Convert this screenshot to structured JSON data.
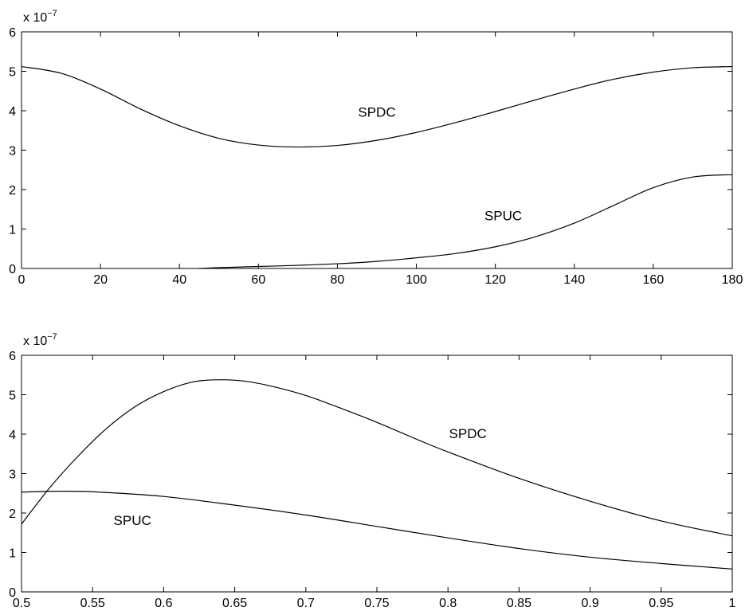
{
  "chart_data": [
    {
      "type": "line",
      "title": "",
      "xlabel": "",
      "ylabel": "",
      "xlim": [
        0,
        180
      ],
      "ylim": [
        0,
        6e-07
      ],
      "y_scale_label": {
        "prefix": "x 10",
        "exponent": "−7"
      },
      "x_ticks": [
        0,
        20,
        40,
        60,
        80,
        100,
        120,
        140,
        160,
        180
      ],
      "x_tick_labels": [
        "0",
        "20",
        "40",
        "60",
        "80",
        "100",
        "120",
        "140",
        "160",
        "180"
      ],
      "y_ticks": [
        0,
        1e-07,
        2e-07,
        3e-07,
        4e-07,
        5e-07,
        6e-07
      ],
      "y_tick_labels": [
        "0",
        "1",
        "2",
        "3",
        "4",
        "5",
        "6"
      ],
      "grid": false,
      "series": [
        {
          "name": "SPDC",
          "x": [
            0,
            10,
            20,
            30,
            40,
            50,
            60,
            70,
            80,
            90,
            100,
            110,
            120,
            130,
            140,
            150,
            160,
            170,
            180
          ],
          "y": [
            5.12e-07,
            4.95e-07,
            4.55e-07,
            4.05e-07,
            3.62e-07,
            3.3e-07,
            3.13e-07,
            3.08e-07,
            3.12e-07,
            3.25e-07,
            3.45e-07,
            3.7e-07,
            3.98e-07,
            4.27e-07,
            4.55e-07,
            4.8e-07,
            4.98e-07,
            5.09e-07,
            5.12e-07
          ]
        },
        {
          "name": "SPUC",
          "x": [
            45,
            50,
            60,
            70,
            80,
            90,
            100,
            110,
            120,
            130,
            140,
            150,
            160,
            170,
            180
          ],
          "y": [
            0,
            2e-09,
            5e-09,
            8e-09,
            1.2e-08,
            1.8e-08,
            2.7e-08,
            3.8e-08,
            5.5e-08,
            8e-08,
            1.15e-07,
            1.6e-07,
            2.05e-07,
            2.32e-07,
            2.38e-07
          ]
        }
      ],
      "annotations": [
        {
          "text": "SPDC",
          "x": 90,
          "y": 3.85e-07
        },
        {
          "text": "SPUC",
          "x": 122,
          "y": 1.22e-07
        }
      ]
    },
    {
      "type": "line",
      "title": "",
      "xlabel": "",
      "ylabel": "",
      "xlim": [
        0.5,
        1
      ],
      "ylim": [
        0,
        6e-07
      ],
      "y_scale_label": {
        "prefix": "x 10",
        "exponent": "−7"
      },
      "x_ticks": [
        0.5,
        0.55,
        0.6,
        0.65,
        0.7,
        0.75,
        0.8,
        0.85,
        0.9,
        0.95,
        1
      ],
      "x_tick_labels": [
        "0.5",
        "0.55",
        "0.6",
        "0.65",
        "0.7",
        "0.75",
        "0.8",
        "0.85",
        "0.9",
        "0.95",
        "1"
      ],
      "y_ticks": [
        0,
        1e-07,
        2e-07,
        3e-07,
        4e-07,
        5e-07,
        6e-07
      ],
      "y_tick_labels": [
        "0",
        "1",
        "2",
        "3",
        "4",
        "5",
        "6"
      ],
      "grid": false,
      "series": [
        {
          "name": "SPDC",
          "x": [
            0.5,
            0.52,
            0.54,
            0.56,
            0.58,
            0.6,
            0.62,
            0.64,
            0.66,
            0.68,
            0.7,
            0.72,
            0.75,
            0.78,
            0.8,
            0.85,
            0.9,
            0.95,
            1.0
          ],
          "y": [
            1.72e-07,
            2.65e-07,
            3.45e-07,
            4.15e-07,
            4.7e-07,
            5.08e-07,
            5.32e-07,
            5.38e-07,
            5.33e-07,
            5.18e-07,
            4.98e-07,
            4.72e-07,
            4.3e-07,
            3.84e-07,
            3.55e-07,
            2.88e-07,
            2.3e-07,
            1.8e-07,
            1.42e-07
          ]
        },
        {
          "name": "SPUC",
          "x": [
            0.5,
            0.52,
            0.54,
            0.56,
            0.6,
            0.65,
            0.7,
            0.75,
            0.8,
            0.85,
            0.9,
            0.95,
            1.0
          ],
          "y": [
            2.53e-07,
            2.55e-07,
            2.55e-07,
            2.52e-07,
            2.42e-07,
            2.2e-07,
            1.95e-07,
            1.66e-07,
            1.37e-07,
            1.1e-07,
            8.8e-08,
            7.2e-08,
            5.8e-08
          ]
        }
      ],
      "annotations": [
        {
          "text": "SPDC",
          "x": 0.814,
          "y": 3.9e-07
        },
        {
          "text": "SPUC",
          "x": 0.578,
          "y": 1.7e-07
        }
      ]
    }
  ]
}
